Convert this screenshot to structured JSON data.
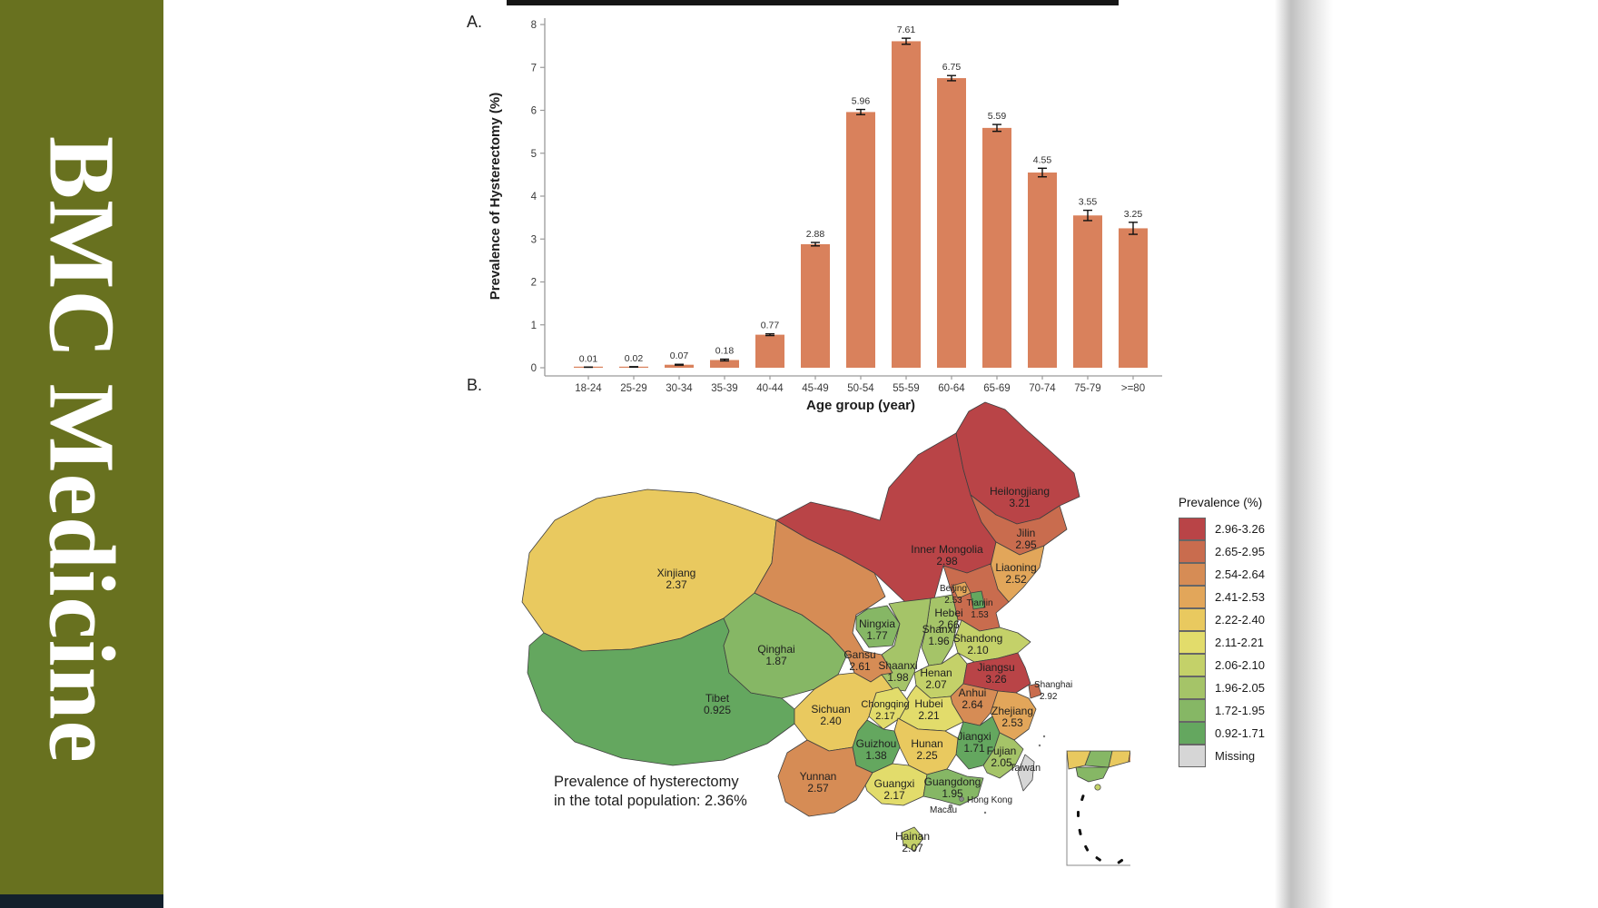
{
  "sidebar": {
    "title": "BMC Medicine",
    "bg_color": "#68711f",
    "strip_color": "#13202c"
  },
  "decor": {
    "top_fragment_color": "#161616"
  },
  "figure": {
    "panel_a_label": "A.",
    "panel_b_label": "B.",
    "chart_data": {
      "type": "bar",
      "title": "",
      "xlabel": "Age group (year)",
      "ylabel": "Prevalence of Hysterectomy (%)",
      "ylim": [
        0,
        8
      ],
      "yticks": [
        0,
        1,
        2,
        3,
        4,
        5,
        6,
        7,
        8
      ],
      "grid": false,
      "bar_color": "#d9815c",
      "categories": [
        "18-24",
        "25-29",
        "30-34",
        "35-39",
        "40-44",
        "45-49",
        "50-54",
        "55-59",
        "60-64",
        "65-69",
        "70-74",
        "75-79",
        ">=80"
      ],
      "values": [
        0.01,
        0.02,
        0.07,
        0.18,
        0.77,
        2.88,
        5.96,
        7.61,
        6.75,
        5.59,
        4.55,
        3.55,
        3.25
      ],
      "value_labels": [
        "0.01",
        "0.02",
        "0.07",
        "0.18",
        "0.77",
        "2.88",
        "5.96",
        "7.61",
        "6.75",
        "5.59",
        "4.55",
        "3.55",
        "3.25"
      ],
      "errors": [
        0.005,
        0.005,
        0.01,
        0.02,
        0.02,
        0.04,
        0.06,
        0.07,
        0.06,
        0.08,
        0.1,
        0.12,
        0.14
      ]
    },
    "map": {
      "annotation_line1": "Prevalence of hysterectomy",
      "annotation_line2": "in the total population: 2.36%",
      "legend_title": "Prevalence (%)",
      "legend": [
        {
          "range": "2.96-3.26",
          "color": "#b94447"
        },
        {
          "range": "2.65-2.95",
          "color": "#c96c4e"
        },
        {
          "range": "2.54-2.64",
          "color": "#d68c55"
        },
        {
          "range": "2.41-2.53",
          "color": "#e2a65a"
        },
        {
          "range": "2.22-2.40",
          "color": "#e9c95f"
        },
        {
          "range": "2.11-2.21",
          "color": "#e2dc6b"
        },
        {
          "range": "2.06-2.10",
          "color": "#c4d169"
        },
        {
          "range": "1.96-2.05",
          "color": "#a5c468"
        },
        {
          "range": "1.72-1.95",
          "color": "#86b765"
        },
        {
          "range": "0.92-1.71",
          "color": "#64a75f"
        },
        {
          "range": "Missing",
          "color": "#d6d6d6"
        }
      ],
      "provinces": [
        {
          "id": "heilongjiang",
          "name": "Heilongjiang",
          "value": "3.21",
          "cat": 0
        },
        {
          "id": "inner-mongolia",
          "name": "Inner Mongolia",
          "value": "2.98",
          "cat": 0
        },
        {
          "id": "jiangsu",
          "name": "Jiangsu",
          "value": "3.26",
          "cat": 0
        },
        {
          "id": "jilin",
          "name": "Jilin",
          "value": "2.95",
          "cat": 1
        },
        {
          "id": "hebei",
          "name": "Hebei",
          "value": "2.66",
          "cat": 1
        },
        {
          "id": "shanghai",
          "name": "Shanghai",
          "value": "2.92",
          "cat": 1
        },
        {
          "id": "gansu",
          "name": "Gansu",
          "value": "2.61",
          "cat": 2
        },
        {
          "id": "anhui",
          "name": "Anhui",
          "value": "2.64",
          "cat": 2
        },
        {
          "id": "yunnan",
          "name": "Yunnan",
          "value": "2.57",
          "cat": 2
        },
        {
          "id": "liaoning",
          "name": "Liaoning",
          "value": "2.52",
          "cat": 3
        },
        {
          "id": "beijing",
          "name": "Beijing",
          "value": "2.53",
          "cat": 3
        },
        {
          "id": "zhejiang",
          "name": "Zhejiang",
          "value": "2.53",
          "cat": 3
        },
        {
          "id": "xinjiang",
          "name": "Xinjiang",
          "value": "2.37",
          "cat": 4
        },
        {
          "id": "sichuan",
          "name": "Sichuan",
          "value": "2.40",
          "cat": 4
        },
        {
          "id": "hunan",
          "name": "Hunan",
          "value": "2.25",
          "cat": 4
        },
        {
          "id": "hubei",
          "name": "Hubei",
          "value": "2.21",
          "cat": 5
        },
        {
          "id": "chongqing",
          "name": "Chongqing",
          "value": "2.17",
          "cat": 5
        },
        {
          "id": "guangxi",
          "name": "Guangxi",
          "value": "2.17",
          "cat": 5
        },
        {
          "id": "shandong",
          "name": "Shandong",
          "value": "2.10",
          "cat": 6
        },
        {
          "id": "henan",
          "name": "Henan",
          "value": "2.07",
          "cat": 6
        },
        {
          "id": "hainan",
          "name": "Hainan",
          "value": "2.07",
          "cat": 6
        },
        {
          "id": "shanxi",
          "name": "Shanxi",
          "value": "1.96",
          "cat": 7
        },
        {
          "id": "shaanxi",
          "name": "Shaanxi",
          "value": "1.98",
          "cat": 7
        },
        {
          "id": "fujian",
          "name": "Fujian",
          "value": "2.05",
          "cat": 7
        },
        {
          "id": "qinghai",
          "name": "Qinghai",
          "value": "1.87",
          "cat": 8
        },
        {
          "id": "ningxia",
          "name": "Ningxia",
          "value": "1.77",
          "cat": 8
        },
        {
          "id": "guangdong",
          "name": "Guangdong",
          "value": "1.95",
          "cat": 8
        },
        {
          "id": "tibet",
          "name": "Tibet",
          "value": "0.925",
          "cat": 9
        },
        {
          "id": "tianjin",
          "name": "Tianjin",
          "value": "1.53",
          "cat": 9
        },
        {
          "id": "guizhou",
          "name": "Guizhou",
          "value": "1.38",
          "cat": 9
        },
        {
          "id": "jiangxi",
          "name": "Jiangxi",
          "value": "1.71",
          "cat": 9
        },
        {
          "id": "taiwan",
          "name": "Taiwan",
          "value": "",
          "cat": 10
        },
        {
          "id": "hongkong",
          "name": "Hong Kong",
          "value": "",
          "cat": null
        },
        {
          "id": "macau",
          "name": "Macau",
          "value": "",
          "cat": null
        }
      ]
    }
  }
}
